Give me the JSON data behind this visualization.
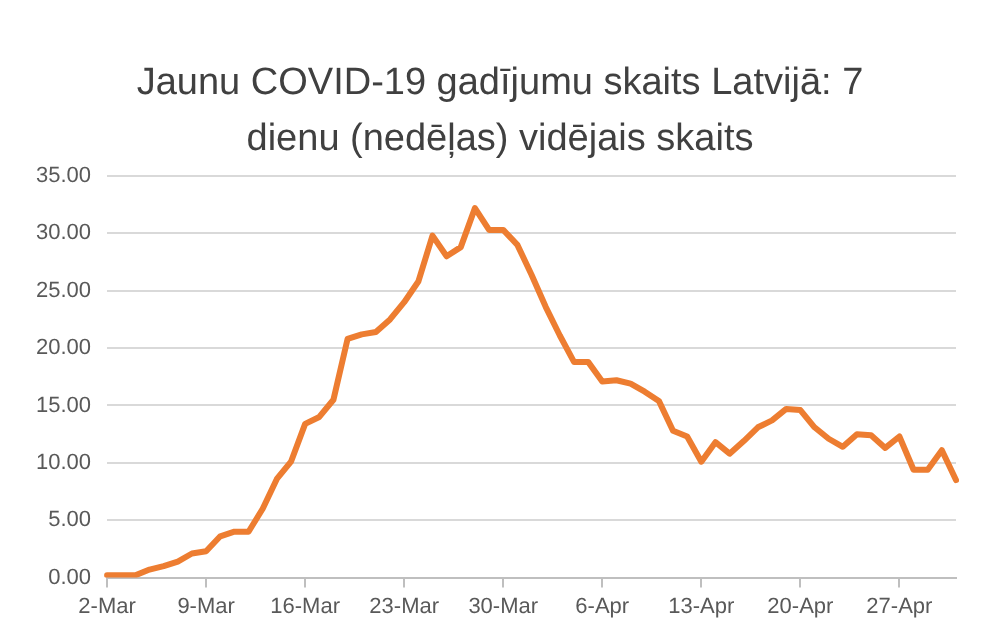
{
  "chart_data": {
    "type": "line",
    "title": "Jaunu COVID-19 gadījumu skaits Latvijā: 7 dienu (nedēļas) vidējais skaits",
    "categories": [
      "2-Mar",
      null,
      null,
      null,
      null,
      null,
      null,
      "9-Mar",
      null,
      null,
      null,
      null,
      null,
      null,
      "16-Mar",
      null,
      null,
      null,
      null,
      null,
      null,
      "23-Mar",
      null,
      null,
      null,
      null,
      null,
      null,
      "30-Mar",
      null,
      null,
      null,
      null,
      null,
      null,
      "6-Apr",
      null,
      null,
      null,
      null,
      null,
      null,
      "13-Apr",
      null,
      null,
      null,
      null,
      null,
      null,
      "20-Apr",
      null,
      null,
      null,
      null,
      null,
      null,
      "27-Apr",
      null,
      null,
      null,
      null
    ],
    "series": [
      {
        "color": "#ed7d31",
        "values": [
          0.2,
          0.2,
          0.2,
          0.7,
          1.0,
          1.4,
          2.1,
          2.3,
          3.6,
          4.0,
          4.0,
          6.0,
          8.6,
          10.1,
          13.4,
          14.0,
          15.5,
          20.8,
          21.2,
          21.4,
          22.5,
          24.0,
          25.8,
          29.8,
          28.0,
          28.8,
          32.2,
          30.3,
          30.3,
          29.0,
          26.4,
          23.6,
          21.1,
          18.8,
          18.8,
          17.1,
          17.2,
          16.9,
          16.2,
          15.4,
          12.8,
          12.3,
          10.1,
          11.8,
          10.8,
          11.9,
          13.1,
          13.7,
          14.7,
          14.6,
          13.1,
          12.1,
          11.4,
          12.5,
          12.4,
          11.3,
          12.3,
          9.4,
          9.4,
          11.1,
          8.5
        ]
      }
    ],
    "ylim": [
      0,
      35
    ],
    "yticks": [
      {
        "value": 0,
        "label": "0.00"
      },
      {
        "value": 5,
        "label": "5.00"
      },
      {
        "value": 10,
        "label": "10.00"
      },
      {
        "value": 15,
        "label": "15.00"
      },
      {
        "value": 20,
        "label": "20.00"
      },
      {
        "value": 25,
        "label": "25.00"
      },
      {
        "value": 30,
        "label": "30.00"
      },
      {
        "value": 35,
        "label": "35.00"
      }
    ],
    "grid": "y",
    "legend": false,
    "marker": "none",
    "line_style": "solid"
  }
}
